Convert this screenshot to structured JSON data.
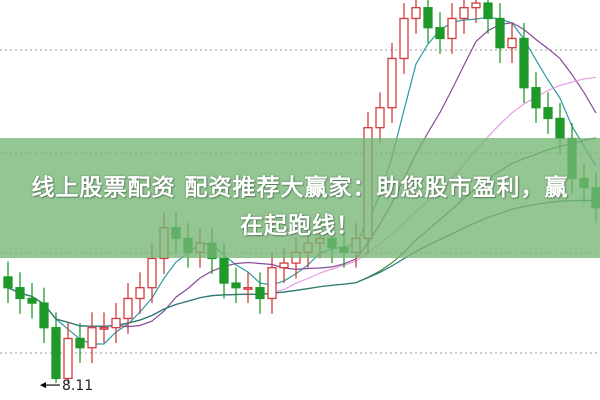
{
  "banner": {
    "line1": "线上股票配资 配资推荐大赢家：助您股市盈利，赢",
    "line2": "在起跑线！"
  },
  "chart_data": {
    "type": "candlestick",
    "ylim": [
      8.0,
      10.6
    ],
    "grid": "horizontal-dotted",
    "colors": {
      "up": "#d23c3c",
      "down": "#1f9a2a",
      "ma": [
        "#2a9aa0",
        "#8a4a9a",
        "#e79be6",
        "#3b8a3b",
        "#2f7a7a"
      ]
    },
    "annotation": {
      "label": "8.11",
      "index": 4
    },
    "open": [
      8.8,
      8.73,
      8.66,
      8.63,
      8.47,
      8.14,
      8.4,
      8.34,
      8.47,
      8.47,
      8.53,
      8.66,
      8.73,
      8.92,
      9.12,
      9.05,
      8.96,
      9.02,
      8.92,
      8.76,
      8.73,
      8.73,
      8.66,
      8.86,
      8.89,
      8.96,
      9.02,
      9.05,
      8.99,
      8.96,
      9.05,
      9.77,
      9.9,
      10.22,
      10.48,
      10.55,
      10.42,
      10.35,
      10.48,
      10.55,
      10.58,
      10.48,
      10.29,
      10.35,
      10.03,
      9.9,
      9.83,
      9.7,
      9.44,
      9.38
    ],
    "high": [
      8.9,
      8.83,
      8.76,
      8.73,
      8.57,
      8.5,
      8.5,
      8.57,
      8.57,
      8.63,
      8.76,
      8.83,
      9.02,
      9.22,
      9.22,
      9.15,
      9.12,
      9.12,
      9.02,
      8.86,
      8.83,
      8.83,
      8.96,
      8.99,
      9.06,
      9.12,
      9.15,
      9.15,
      9.09,
      9.15,
      9.87,
      10.0,
      10.32,
      10.58,
      10.65,
      10.65,
      10.52,
      10.58,
      10.65,
      10.68,
      10.68,
      10.58,
      10.45,
      10.45,
      10.13,
      10.0,
      9.93,
      9.8,
      9.54,
      9.48
    ],
    "low": [
      8.63,
      8.56,
      8.53,
      8.37,
      8.11,
      8.11,
      8.24,
      8.24,
      8.37,
      8.37,
      8.43,
      8.56,
      8.63,
      8.82,
      8.95,
      8.86,
      8.86,
      8.82,
      8.66,
      8.63,
      8.63,
      8.56,
      8.56,
      8.76,
      8.79,
      8.86,
      8.92,
      8.89,
      8.86,
      8.86,
      8.95,
      9.67,
      9.8,
      10.12,
      10.38,
      10.32,
      10.25,
      10.25,
      10.38,
      10.45,
      10.38,
      10.19,
      10.19,
      9.93,
      9.8,
      9.73,
      9.6,
      9.34,
      9.28,
      9.15
    ],
    "close": [
      8.73,
      8.66,
      8.63,
      8.47,
      8.14,
      8.4,
      8.34,
      8.47,
      8.47,
      8.53,
      8.66,
      8.73,
      8.92,
      9.12,
      9.05,
      8.96,
      9.02,
      8.92,
      8.76,
      8.73,
      8.73,
      8.66,
      8.86,
      8.89,
      8.96,
      9.02,
      9.05,
      8.99,
      8.96,
      9.05,
      9.77,
      9.9,
      10.22,
      10.48,
      10.55,
      10.42,
      10.35,
      10.48,
      10.55,
      10.58,
      10.48,
      10.29,
      10.35,
      10.03,
      9.9,
      9.83,
      9.7,
      9.44,
      9.38,
      9.25
    ]
  }
}
